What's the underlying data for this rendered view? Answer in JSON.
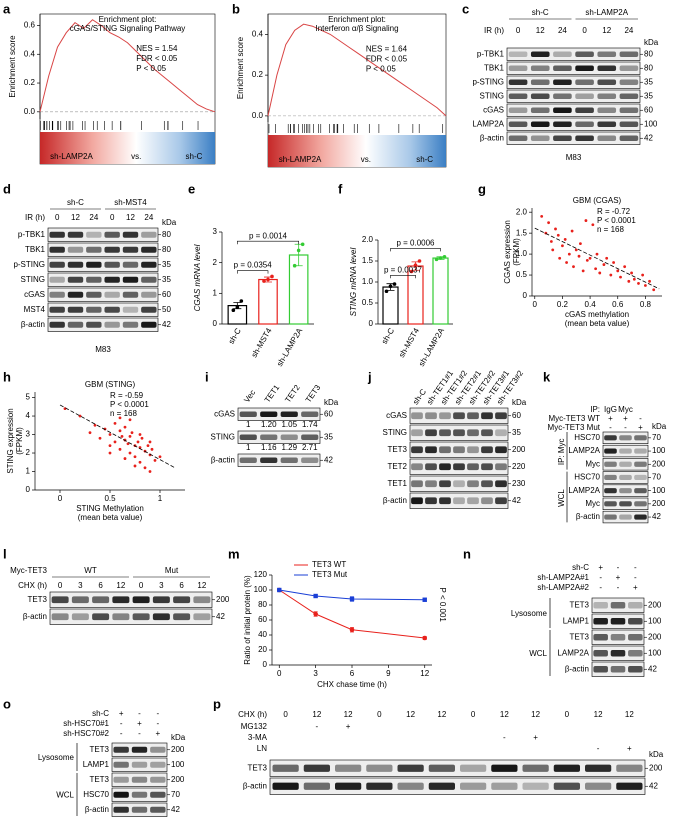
{
  "chart_data": [
    {
      "type": "gsea",
      "letter": "a",
      "title": [
        "Enrichment plot:",
        "cGAS/STING Signaling Pathway"
      ],
      "ylabel": "Enrichment score",
      "values": [
        0,
        0.25,
        0.45,
        0.55,
        0.62,
        0.58,
        0.64,
        0.6,
        0.55,
        0.52,
        0.48,
        0.42,
        0.36,
        0.3,
        0.25,
        0.2,
        0.15,
        0.1,
        0.05,
        0.02,
        0
      ],
      "ylim": [
        -0.05,
        0.68
      ],
      "yticks": [
        {
          "value": 0,
          "label": "0.0"
        },
        0.2,
        0.4,
        0.6
      ],
      "annotations": [
        "NES = 1.54",
        "FDR < 0.05",
        "P < 0.05"
      ],
      "bottom_labels": [
        "sh-LAMP2A",
        "vs.",
        "sh-C"
      ],
      "color": "#d94545"
    },
    {
      "type": "gsea",
      "letter": "b",
      "title": [
        "Enrichment plot:",
        "Interferon α/β Signaling"
      ],
      "ylabel": "Enrichment score",
      "values": [
        0,
        0.2,
        0.35,
        0.42,
        0.45,
        0.44,
        0.42,
        0.4,
        0.37,
        0.34,
        0.31,
        0.28,
        0.25,
        0.22,
        0.19,
        0.16,
        0.13,
        0.1,
        0.07,
        0.04,
        0
      ],
      "ylim": [
        -0.03,
        0.5
      ],
      "yticks": [
        {
          "value": 0,
          "label": "0.0"
        },
        0.2,
        0.4
      ],
      "annotations": [
        "NES = 1.64",
        "FDR < 0.05",
        "P < 0.05"
      ],
      "bottom_labels": [
        "sh-LAMP2A",
        "vs.",
        "sh-C"
      ],
      "color": "#d94545"
    },
    {
      "type": "bar",
      "letter": "e",
      "ylabel": "CGAS mRNA level",
      "categories": [
        "sh-C",
        "sh-MST4",
        "sh-LAMP2A"
      ],
      "values": [
        0.6,
        1.45,
        2.25
      ],
      "errors": [
        0.1,
        0.08,
        0.35
      ],
      "points": [
        [
          0.45,
          0.55,
          0.75
        ],
        [
          1.4,
          1.45,
          1.55
        ],
        [
          1.9,
          2.4,
          2.6
        ]
      ],
      "colors": [
        "#000000",
        "#e8211c",
        "#33cc33"
      ],
      "ylim": [
        0,
        3
      ],
      "yticks": [
        0,
        1,
        2,
        3
      ],
      "comparisons": [
        "p = 0.0354",
        "p = 0.0014"
      ]
    },
    {
      "type": "bar",
      "letter": "f",
      "ylabel": "STING mRNA level",
      "categories": [
        "sh-C",
        "sh-MST4",
        "sh-LAMP2A"
      ],
      "values": [
        0.88,
        1.38,
        1.57
      ],
      "errors": [
        0.08,
        0.1,
        0.03
      ],
      "points": [
        [
          0.78,
          0.9,
          0.95
        ],
        [
          1.25,
          1.4,
          1.5
        ],
        [
          1.54,
          1.57,
          1.6
        ]
      ],
      "colors": [
        "#000000",
        "#e8211c",
        "#33cc33"
      ],
      "ylim": [
        0,
        2
      ],
      "yticks": [
        0,
        0.5,
        {
          "value": 1,
          "label": "1.0"
        },
        1.5,
        {
          "value": 2,
          "label": "2.0"
        }
      ],
      "comparisons": [
        "p = 0.0037",
        "p = 0.0006"
      ]
    },
    {
      "type": "scatter",
      "letter": "g",
      "title": "GBM (CGAS)",
      "ylabel": [
        "CGAS expression",
        "(FPKM)"
      ],
      "xlabel": [
        "cGAS methylation",
        "(mean beta value)"
      ],
      "annotations": [
        "R = -0.72",
        "P < 0.0001",
        "n = 168"
      ],
      "color": "#e8211c",
      "x": [
        0.05,
        0.08,
        0.1,
        0.12,
        0.13,
        0.15,
        0.17,
        0.18,
        0.2,
        0.22,
        0.23,
        0.25,
        0.27,
        0.28,
        0.3,
        0.32,
        0.33,
        0.35,
        0.37,
        0.38,
        0.4,
        0.42,
        0.44,
        0.45,
        0.47,
        0.5,
        0.52,
        0.55,
        0.57,
        0.6,
        0.62,
        0.65,
        0.68,
        0.7,
        0.72,
        0.75,
        0.78,
        0.8,
        0.83,
        0.86
      ],
      "y": [
        1.9,
        1.5,
        1.75,
        1.3,
        1.1,
        1.6,
        1.45,
        0.9,
        1.2,
        1.35,
        0.8,
        1.0,
        1.55,
        0.7,
        1.1,
        0.95,
        1.25,
        0.6,
        1.8,
        0.85,
        0.9,
        1.7,
        0.65,
        1.0,
        0.55,
        0.75,
        0.9,
        0.5,
        0.8,
        0.6,
        0.45,
        0.7,
        0.35,
        0.55,
        0.4,
        0.3,
        0.5,
        0.25,
        0.35,
        0.15
      ],
      "fit_x": [
        0,
        0.9
      ],
      "fit_y": [
        1.62,
        0.17
      ],
      "xlim": [
        -0.02,
        0.92
      ],
      "xticks": [
        0,
        0.2,
        0.4,
        0.6,
        0.8
      ],
      "ylim": [
        0,
        2.1
      ],
      "yticks": [
        0,
        0.5,
        {
          "value": 1,
          "label": "1.0"
        },
        1.5,
        {
          "value": 2,
          "label": "2.0"
        }
      ]
    },
    {
      "type": "scatter",
      "letter": "h",
      "title": "GBM (STING)",
      "ylabel": [
        "STING expression",
        "(FPKM)"
      ],
      "xlabel": [
        "STING Methylation",
        "(mean beta value)"
      ],
      "annotations": [
        "R = -0.59",
        "P < 0.0001",
        "n = 168"
      ],
      "color": "#e8211c",
      "x": [
        0.05,
        0.2,
        0.3,
        0.35,
        0.4,
        0.45,
        0.5,
        0.5,
        0.55,
        0.55,
        0.6,
        0.6,
        0.62,
        0.65,
        0.65,
        0.68,
        0.7,
        0.7,
        0.72,
        0.75,
        0.75,
        0.78,
        0.8,
        0.8,
        0.82,
        0.85,
        0.85,
        0.88,
        0.9,
        0.9,
        0.92,
        0.95,
        1.0,
        0.7,
        0.6,
        0.5,
        0.8,
        0.9,
        0.75,
        0.65
      ],
      "y": [
        4.4,
        4.0,
        3.1,
        3.5,
        2.8,
        3.3,
        3.0,
        2.4,
        3.6,
        2.6,
        3.2,
        2.2,
        2.9,
        2.7,
        3.4,
        2.5,
        2.9,
        2.0,
        3.1,
        2.4,
        1.8,
        2.6,
        2.3,
        1.5,
        2.8,
        2.1,
        1.2,
        2.4,
        1.9,
        1.0,
        2.2,
        1.6,
        1.8,
        3.8,
        3.9,
        2.0,
        3.0,
        2.6,
        1.3,
        1.7
      ],
      "fit_x": [
        0,
        1.15
      ],
      "fit_y": [
        4.6,
        1.2
      ],
      "xlim": [
        -0.25,
        1.25
      ],
      "xticks": [
        0,
        0.5,
        1
      ],
      "ylim": [
        0,
        5.3
      ],
      "yticks": [
        0,
        1,
        2,
        3,
        4,
        5
      ]
    },
    {
      "type": "line",
      "letter": "m",
      "ylabel": "Ratio of initial protein (%)",
      "xlabel": "CHX chase time (h)",
      "x": [
        0,
        3,
        6,
        12
      ],
      "series": [
        {
          "name": "TET3 WT",
          "color": "#e8211c",
          "values": [
            100,
            68,
            47,
            36
          ],
          "errors": [
            0,
            3,
            3,
            2
          ]
        },
        {
          "name": "TET3 Mut",
          "color": "#1a3fd6",
          "values": [
            100,
            92,
            88,
            87
          ],
          "errors": [
            0,
            2,
            3,
            2
          ]
        }
      ],
      "annotation": "P < 0.001",
      "xlim": [
        -0.6,
        12.6
      ],
      "xticks": [
        0,
        3,
        6,
        9,
        12
      ],
      "ylim": [
        0,
        120
      ],
      "yticks": [
        0,
        20,
        40,
        60,
        80,
        100,
        120
      ]
    }
  ],
  "blots": [
    {
      "letter": "c",
      "groups": [
        "sh-C",
        "sh-LAMP2A"
      ],
      "header": [
        {
          "label": "IR (h)",
          "cells": [
            0,
            12,
            24,
            0,
            12,
            24
          ]
        }
      ],
      "kda_label": "kDa",
      "sections": [
        {
          "rows": [
            {
              "name": "p-TBK1",
              "kda": 80
            },
            {
              "name": "TBK1",
              "kda": 80
            },
            {
              "name": "p-STING",
              "kda": 35
            },
            {
              "name": "STING",
              "kda": 35
            },
            {
              "name": "cGAS",
              "kda": 60
            },
            {
              "name": "LAMP2A",
              "kda": 100
            },
            {
              "name": "β-actin",
              "kda": 42
            }
          ]
        }
      ],
      "footer": "M83"
    },
    {
      "letter": "d",
      "groups": [
        "sh-C",
        "sh-MST4"
      ],
      "header": [
        {
          "label": "IR (h)",
          "cells": [
            0,
            12,
            24,
            0,
            12,
            24
          ]
        }
      ],
      "kda_label": "kDa",
      "sections": [
        {
          "rows": [
            {
              "name": "p-TBK1",
              "kda": 80
            },
            {
              "name": "TBK1",
              "kda": 80
            },
            {
              "name": "p-STING",
              "kda": 35
            },
            {
              "name": "STING",
              "kda": 35
            },
            {
              "name": "cGAS",
              "kda": 60
            },
            {
              "name": "MST4",
              "kda": 50
            },
            {
              "name": "β-actin",
              "kda": 42
            }
          ]
        }
      ],
      "footer": "M83"
    },
    {
      "letter": "i",
      "lane_labels": [
        "Vec",
        "TET1",
        "TET2",
        "TET3"
      ],
      "kda_label": "kDa",
      "sections": [
        {
          "rows": [
            {
              "name": "cGAS",
              "kda": 60,
              "quant": [
                "1",
                "1.20",
                "1.05",
                "1.74"
              ]
            },
            {
              "name": "STING",
              "kda": 35,
              "quant": [
                "1",
                "1.16",
                "1.29",
                "2.71"
              ]
            },
            {
              "name": "β-actin",
              "kda": 42
            }
          ]
        }
      ]
    },
    {
      "letter": "j",
      "lane_labels": [
        "sh-C",
        "sh-TET1#1",
        "sh-TET1#2",
        "sh-TET2#1",
        "sh-TET2#2",
        "sh-TET3#1",
        "sh-TET3#2"
      ],
      "kda_label": "kDa",
      "sections": [
        {
          "rows": [
            {
              "name": "cGAS",
              "kda": 60
            },
            {
              "name": "STING",
              "kda": 35
            },
            {
              "name": "TET3",
              "kda": 200
            },
            {
              "name": "TET2",
              "kda": 220
            },
            {
              "name": "TET1",
              "kda": 230
            },
            {
              "name": "β-actin",
              "kda": 42
            }
          ]
        }
      ]
    },
    {
      "letter": "k",
      "header": [
        {
          "label": "IP:",
          "cells": [
            "IgG",
            "Myc",
            null
          ]
        },
        {
          "label": "Myc-TET3 WT",
          "cells": [
            "+",
            "+",
            "-"
          ]
        },
        {
          "label": "Myc-TET3 Mut",
          "cells": [
            "-",
            "-",
            "+"
          ]
        }
      ],
      "kda_label": "kDa",
      "sections": [
        {
          "label": "IP: Myc",
          "rows": [
            {
              "name": "HSC70",
              "kda": 70
            },
            {
              "name": "LAMP2A",
              "kda": 100
            },
            {
              "name": "Myc",
              "kda": 200
            }
          ]
        },
        {
          "label": "WCL",
          "rows": [
            {
              "name": "HSC70",
              "kda": 70
            },
            {
              "name": "LAMP2A",
              "kda": 100
            },
            {
              "name": "Myc",
              "kda": 200
            },
            {
              "name": "β-actin",
              "kda": 42
            }
          ]
        }
      ]
    },
    {
      "letter": "l",
      "groups_label": "Myc-TET3",
      "groups": [
        "WT",
        "Mut"
      ],
      "header": [
        {
          "label": "CHX (h)",
          "cells": [
            0,
            3,
            6,
            12,
            0,
            3,
            6,
            12
          ]
        }
      ],
      "sections": [
        {
          "rows": [
            {
              "name": "TET3",
              "kda": 200
            },
            {
              "name": "β-actin",
              "kda": 42
            }
          ]
        }
      ]
    },
    {
      "letter": "n",
      "header": [
        {
          "label": "sh-C",
          "cells": [
            "+",
            "-",
            "-"
          ]
        },
        {
          "label": "sh-LAMP2A#1",
          "cells": [
            "-",
            "+",
            "-"
          ]
        },
        {
          "label": "sh-LAMP2A#2",
          "cells": [
            "-",
            "-",
            "+"
          ]
        }
      ],
      "sections": [
        {
          "label": "Lysosome",
          "rows": [
            {
              "name": "TET3",
              "kda": 200
            },
            {
              "name": "LAMP1",
              "kda": 100
            }
          ]
        },
        {
          "label": "WCL",
          "rows": [
            {
              "name": "TET3",
              "kda": 200
            },
            {
              "name": "LAMP2A",
              "kda": 100
            },
            {
              "name": "β-actin",
              "kda": 42
            }
          ]
        }
      ]
    },
    {
      "letter": "o",
      "header": [
        {
          "label": "sh-C",
          "cells": [
            "+",
            "-",
            "-"
          ]
        },
        {
          "label": "sh-HSC70#1",
          "cells": [
            "-",
            "+",
            "-"
          ]
        },
        {
          "label": "sh-HSC70#2",
          "cells": [
            "-",
            "-",
            "+"
          ]
        }
      ],
      "kda_label": "kDa",
      "sections": [
        {
          "label": "Lysosome",
          "rows": [
            {
              "name": "TET3",
              "kda": 200
            },
            {
              "name": "LAMP1",
              "kda": 100
            }
          ]
        },
        {
          "label": "WCL",
          "rows": [
            {
              "name": "TET3",
              "kda": 200
            },
            {
              "name": "HSC70",
              "kda": 70
            },
            {
              "name": "β-actin",
              "kda": 42
            }
          ]
        }
      ]
    },
    {
      "letter": "p",
      "header": [
        {
          "label": "CHX (h)",
          "cells": [
            0,
            12,
            12,
            0,
            12,
            12,
            0,
            12,
            12,
            0,
            12,
            12
          ]
        },
        {
          "label": "MG132",
          "cells": [
            null,
            "-",
            "+",
            null,
            null,
            null,
            null,
            null,
            null,
            null,
            null,
            null
          ]
        },
        {
          "label": "3-MA",
          "cells": [
            null,
            null,
            null,
            null,
            null,
            null,
            null,
            "-",
            "+",
            null,
            null,
            null
          ]
        },
        {
          "label": "LN",
          "cells": [
            null,
            null,
            null,
            null,
            null,
            null,
            null,
            null,
            null,
            null,
            "-",
            "+"
          ]
        }
      ],
      "kda_label": "kDa",
      "sections": [
        {
          "rows": [
            {
              "name": "TET3",
              "kda": 200
            },
            {
              "name": "β-actin",
              "kda": 42
            }
          ]
        }
      ]
    }
  ]
}
